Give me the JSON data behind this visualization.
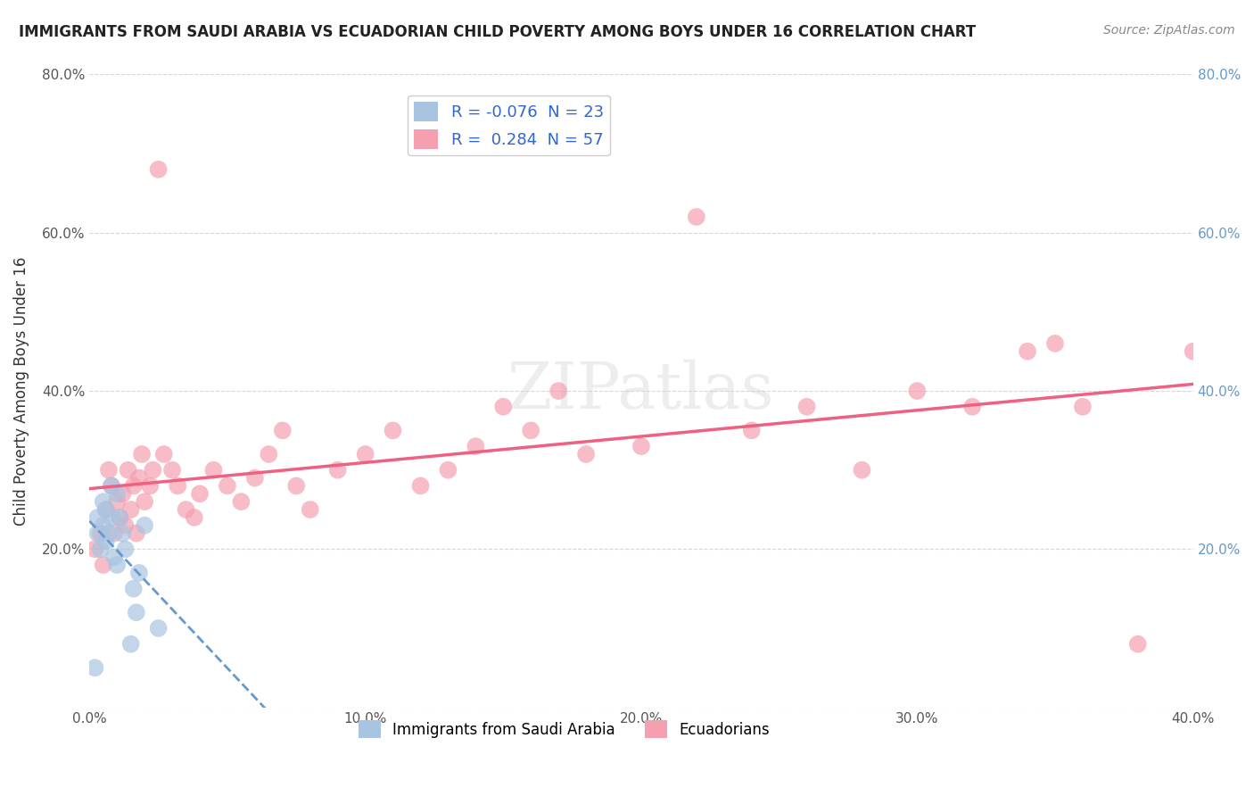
{
  "title": "IMMIGRANTS FROM SAUDI ARABIA VS ECUADORIAN CHILD POVERTY AMONG BOYS UNDER 16 CORRELATION CHART",
  "source": "Source: ZipAtlas.com",
  "ylabel": "Child Poverty Among Boys Under 16",
  "xlabel": "",
  "legend_bottom": [
    "Immigrants from Saudi Arabia",
    "Ecuadorians"
  ],
  "r_saudi": -0.076,
  "n_saudi": 23,
  "r_ecuador": 0.284,
  "n_ecuador": 57,
  "xlim": [
    0.0,
    0.4
  ],
  "ylim": [
    0.0,
    0.8
  ],
  "yticks": [
    0.0,
    0.2,
    0.4,
    0.6,
    0.8
  ],
  "xticks": [
    0.0,
    0.1,
    0.2,
    0.3,
    0.4
  ],
  "xtick_labels": [
    "0.0%",
    "10.0%",
    "20.0%",
    "30.0%",
    "40.0%"
  ],
  "ytick_labels": [
    "",
    "20.0%",
    "40.0%",
    "60.0%",
    "80.0%"
  ],
  "color_saudi": "#a8c4e0",
  "color_ecuador": "#f4a0b0",
  "line_color_saudi": "#6699cc",
  "line_color_ecuador": "#f06080",
  "background_color": "#ffffff",
  "watermark": "ZIPatlas",
  "saudi_x": [
    0.002,
    0.003,
    0.003,
    0.004,
    0.005,
    0.005,
    0.006,
    0.006,
    0.007,
    0.008,
    0.008,
    0.009,
    0.01,
    0.01,
    0.011,
    0.012,
    0.013,
    0.015,
    0.016,
    0.017,
    0.018,
    0.02,
    0.025
  ],
  "saudi_y": [
    0.05,
    0.22,
    0.24,
    0.2,
    0.23,
    0.26,
    0.21,
    0.25,
    0.22,
    0.28,
    0.24,
    0.19,
    0.27,
    0.18,
    0.24,
    0.22,
    0.2,
    0.08,
    0.15,
    0.12,
    0.17,
    0.23,
    0.1
  ],
  "ecuador_x": [
    0.002,
    0.004,
    0.005,
    0.006,
    0.007,
    0.008,
    0.009,
    0.01,
    0.011,
    0.012,
    0.013,
    0.014,
    0.015,
    0.016,
    0.017,
    0.018,
    0.019,
    0.02,
    0.022,
    0.023,
    0.025,
    0.027,
    0.03,
    0.032,
    0.035,
    0.038,
    0.04,
    0.045,
    0.05,
    0.055,
    0.06,
    0.065,
    0.07,
    0.075,
    0.08,
    0.09,
    0.1,
    0.11,
    0.12,
    0.13,
    0.14,
    0.15,
    0.16,
    0.17,
    0.18,
    0.2,
    0.22,
    0.24,
    0.26,
    0.28,
    0.3,
    0.32,
    0.34,
    0.36,
    0.38,
    0.4,
    0.35
  ],
  "ecuador_y": [
    0.2,
    0.22,
    0.18,
    0.25,
    0.3,
    0.28,
    0.22,
    0.26,
    0.24,
    0.27,
    0.23,
    0.3,
    0.25,
    0.28,
    0.22,
    0.29,
    0.32,
    0.26,
    0.28,
    0.3,
    0.68,
    0.32,
    0.3,
    0.28,
    0.25,
    0.24,
    0.27,
    0.3,
    0.28,
    0.26,
    0.29,
    0.32,
    0.35,
    0.28,
    0.25,
    0.3,
    0.32,
    0.35,
    0.28,
    0.3,
    0.33,
    0.38,
    0.35,
    0.4,
    0.32,
    0.33,
    0.62,
    0.35,
    0.38,
    0.3,
    0.4,
    0.38,
    0.45,
    0.38,
    0.08,
    0.45,
    0.46
  ]
}
